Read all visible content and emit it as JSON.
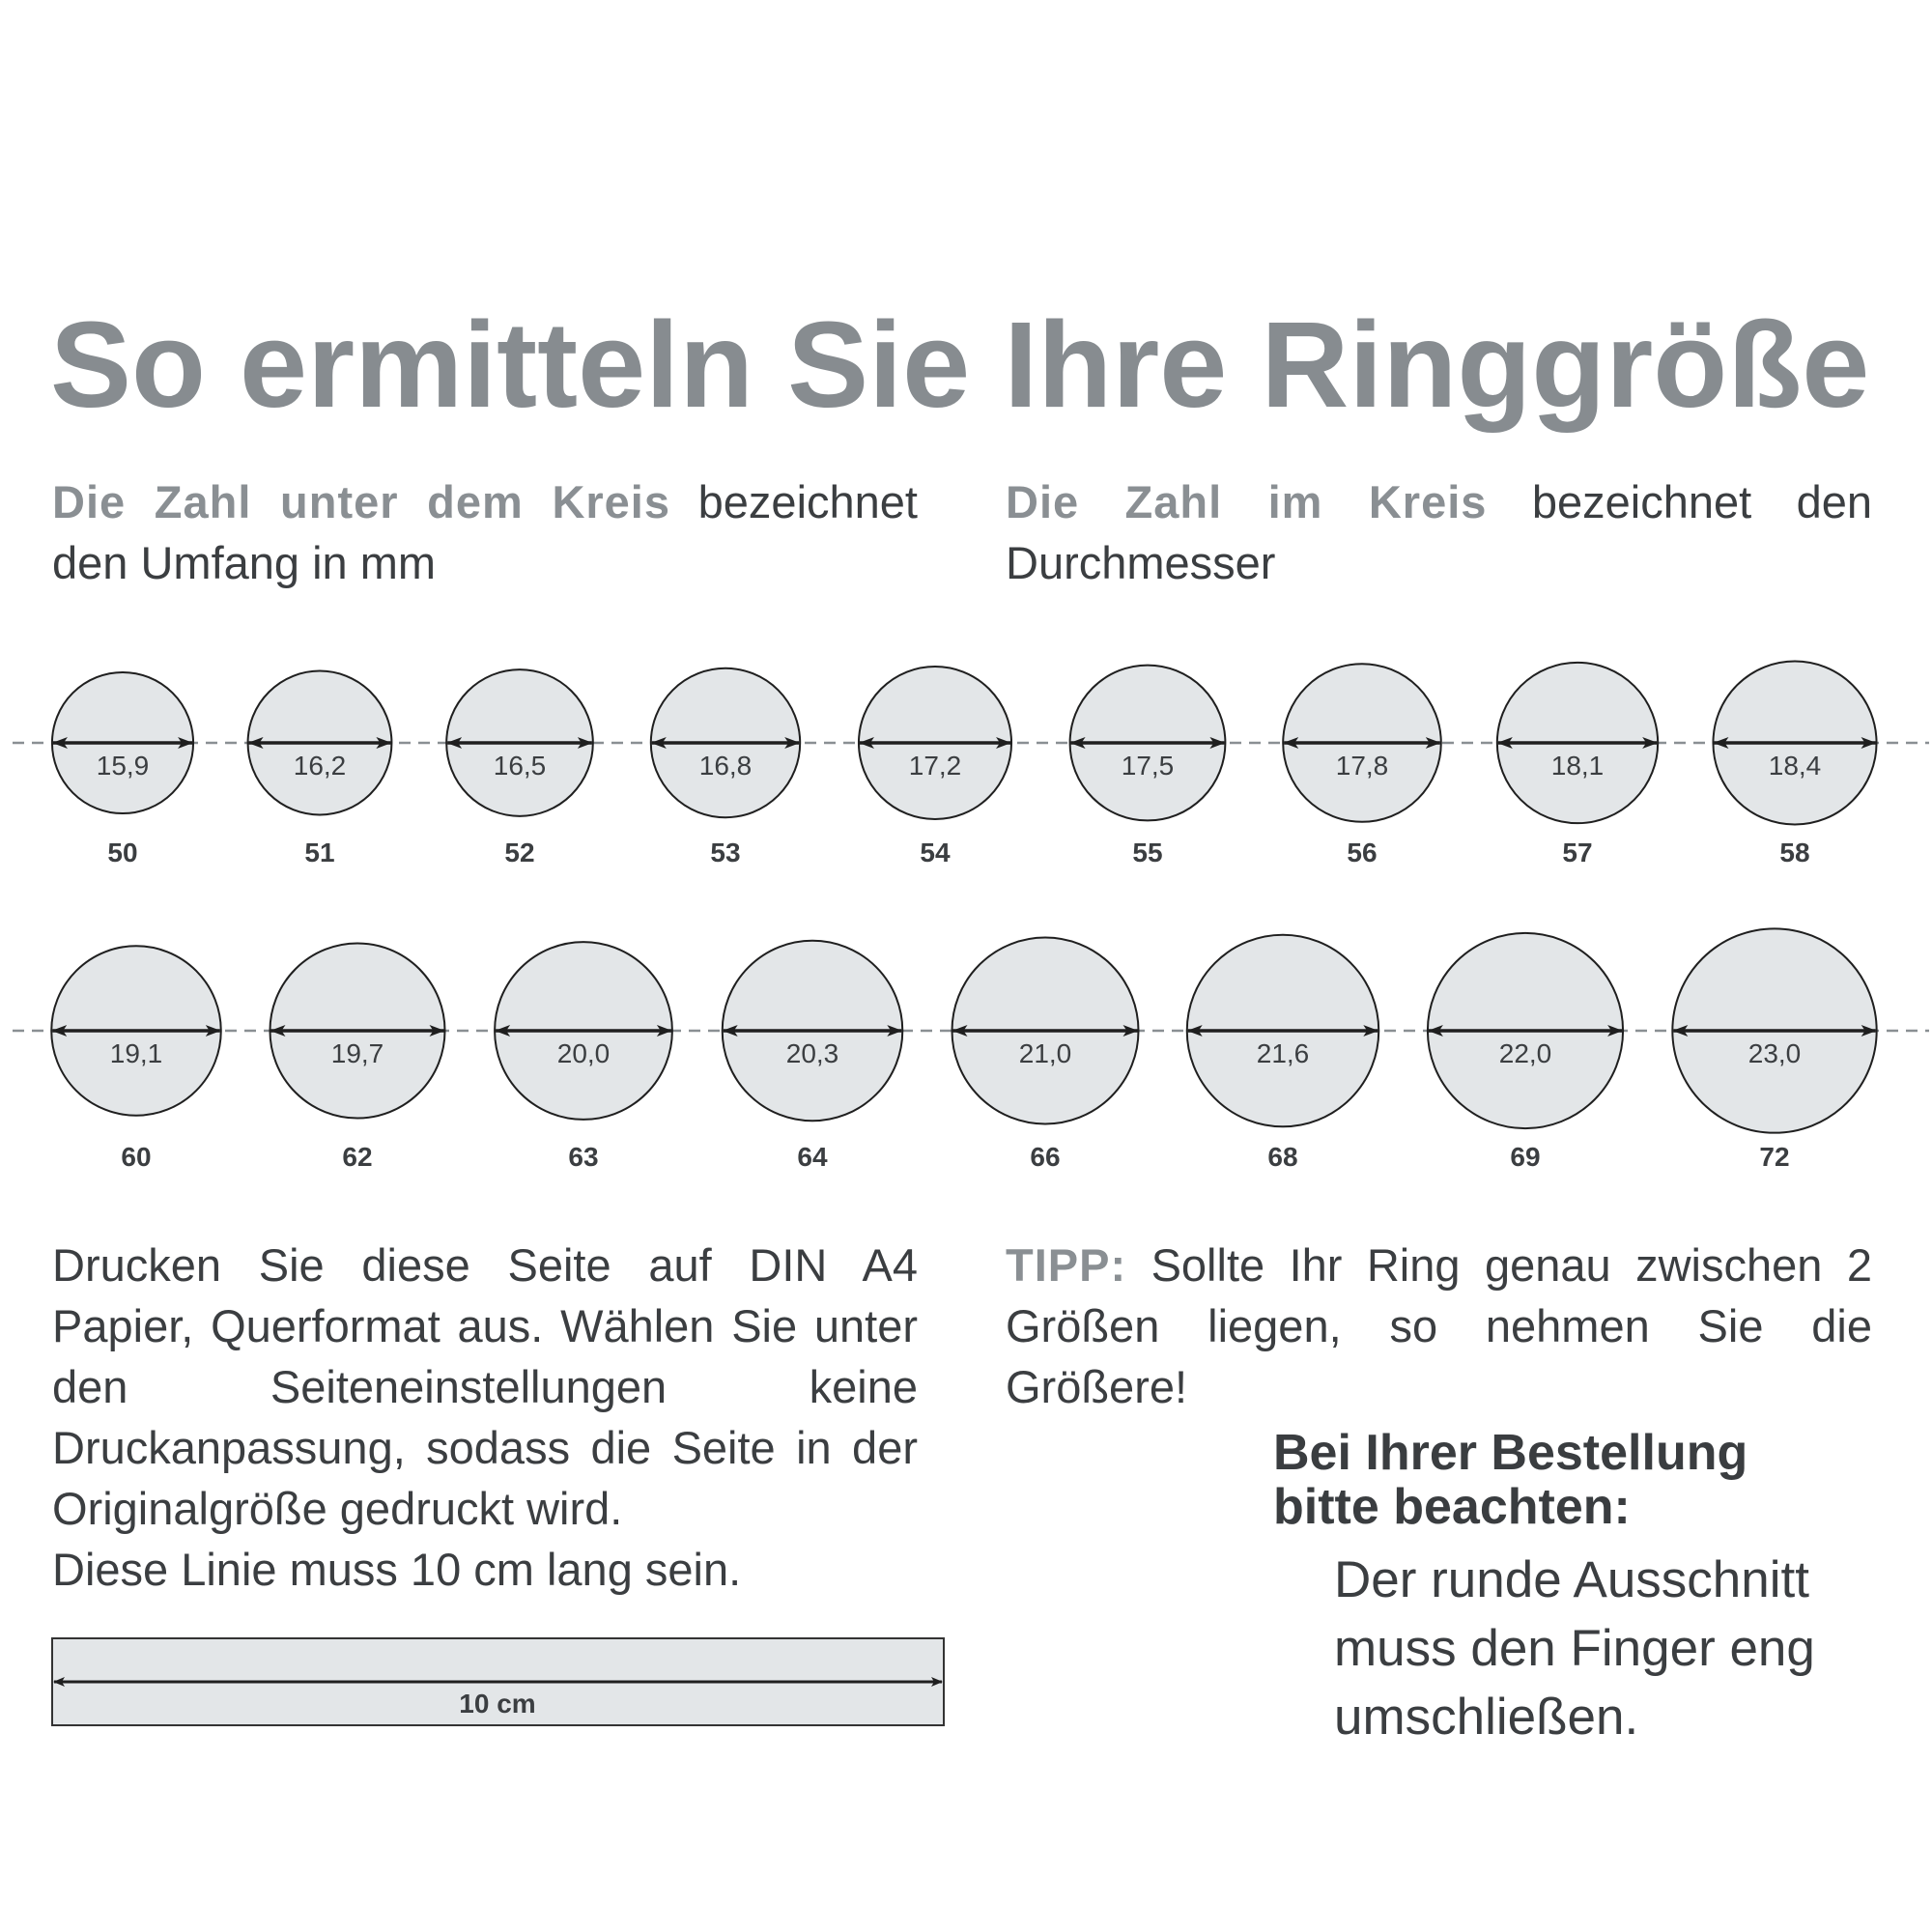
{
  "title": "So ermitteln Sie Ihre Ringgröße",
  "intro_left": {
    "highlight": "Die Zahl unter dem Kreis",
    "rest": " bezeichnet den Umfang in mm"
  },
  "intro_right": {
    "highlight": "Die Zahl im Kreis",
    "rest": " bezeichnet den Durchmesser"
  },
  "rings": {
    "row1": [
      {
        "size": "50",
        "diameter": "15,9"
      },
      {
        "size": "51",
        "diameter": "16,2"
      },
      {
        "size": "52",
        "diameter": "16,5"
      },
      {
        "size": "53",
        "diameter": "16,8"
      },
      {
        "size": "54",
        "diameter": "17,2"
      },
      {
        "size": "55",
        "diameter": "17,5"
      },
      {
        "size": "56",
        "diameter": "17,8"
      },
      {
        "size": "57",
        "diameter": "18,1"
      },
      {
        "size": "58",
        "diameter": "18,4"
      }
    ],
    "row2": [
      {
        "size": "60",
        "diameter": "19,1"
      },
      {
        "size": "62",
        "diameter": "19,7"
      },
      {
        "size": "63",
        "diameter": "20,0"
      },
      {
        "size": "64",
        "diameter": "20,3"
      },
      {
        "size": "66",
        "diameter": "21,0"
      },
      {
        "size": "68",
        "diameter": "21,6"
      },
      {
        "size": "69",
        "diameter": "22,0"
      },
      {
        "size": "72",
        "diameter": "23,0"
      }
    ]
  },
  "print_instructions": "Drucken Sie diese Seite auf DIN A4 Papier, Querformat aus. Wählen Sie unter den Seiteneinstellungen keine Druckanpassung, sodass die Seite in der Originalgröße gedruckt wird.",
  "line_instruction": "Diese Linie muss 10 cm lang sein.",
  "ruler_label": "10 cm",
  "tip": {
    "label": "TIPP:",
    "text": " Sollte Ihr Ring genau zwischen 2 Größen liegen, so nehmen Sie die Größere!"
  },
  "order_note": {
    "heading_line1": "Bei Ihrer Bestellung",
    "heading_line2": "bitte beachten:",
    "body_line1": "Der runde Ausschnitt",
    "body_line2": "muss den Finger eng",
    "body_line3": "umschließen."
  },
  "colors": {
    "heading_gray": "#878c90",
    "text_dark": "#3b3e41",
    "circle_fill": "#e3e6e8",
    "dash_gray": "#8a8f93"
  }
}
